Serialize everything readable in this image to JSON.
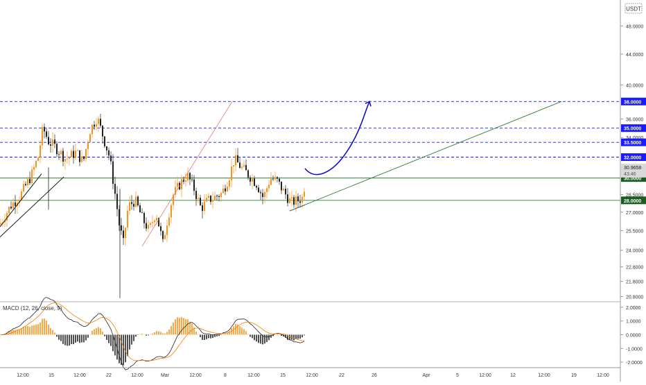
{
  "currency": "USDT",
  "indicator": {
    "label": "MACD (12, 26, close, 9)"
  },
  "time_labels": [
    "12:00",
    "15",
    "12:00",
    "22",
    "12:00",
    "Mar",
    "12:00",
    "8",
    "12:00",
    "15",
    "12:00",
    "22",
    "26",
    "Apr",
    "5",
    "12:00",
    "12",
    "12:00",
    "19",
    "12:00"
  ],
  "colors": {
    "up": "#f7931a",
    "down": "#222222",
    "level": "#1a1aff",
    "support": "#2e7d32",
    "badge_blue": "#1a1aff",
    "badge_green": "#1b5e20",
    "macd": "#222222",
    "signal": "#f57c00"
  },
  "chart_data": [
    {
      "type": "candlestick",
      "price_axis": {
        "ticks": [
          "48.0000",
          "44.0000",
          "40.0000",
          "36.0000",
          "34.0000",
          "28.5000",
          "27.0000",
          "25.5000",
          "24.0000",
          "22.8000",
          "21.8000",
          "20.8000"
        ],
        "ylim": [
          20.6,
          52.0
        ],
        "scale": "log"
      },
      "current_price": "30.9658",
      "countdown": "43:46",
      "horizontal_levels": [
        {
          "value": 38.0,
          "label": "38.0000",
          "style": "dashed",
          "color": "blue"
        },
        {
          "value": 35.0,
          "label": "35.0000",
          "style": "dashed",
          "color": "blue"
        },
        {
          "value": 33.5,
          "label": "33.5000",
          "style": "dashed",
          "color": "blue"
        },
        {
          "value": 32.0,
          "label": "32.0000",
          "style": "dashed",
          "color": "blue"
        },
        {
          "value": 30.0,
          "label": "30.0000",
          "style": "solid",
          "color": "green"
        },
        {
          "value": 28.0,
          "label": "28.0000",
          "style": "solid",
          "color": "green"
        }
      ],
      "annotations": [
        "ascending support trendline",
        "projected blue arrow toward 38.0000",
        "red diagonal line",
        "black ascending channel"
      ],
      "grid": false
    },
    {
      "type": "macd",
      "title": "MACD (12, 26, close, 9)",
      "ticks": [
        "2.0000",
        "1.0000",
        "0.0000",
        "-1.0000",
        "-2.0000"
      ],
      "ylim": [
        -2.3,
        2.3
      ]
    }
  ]
}
